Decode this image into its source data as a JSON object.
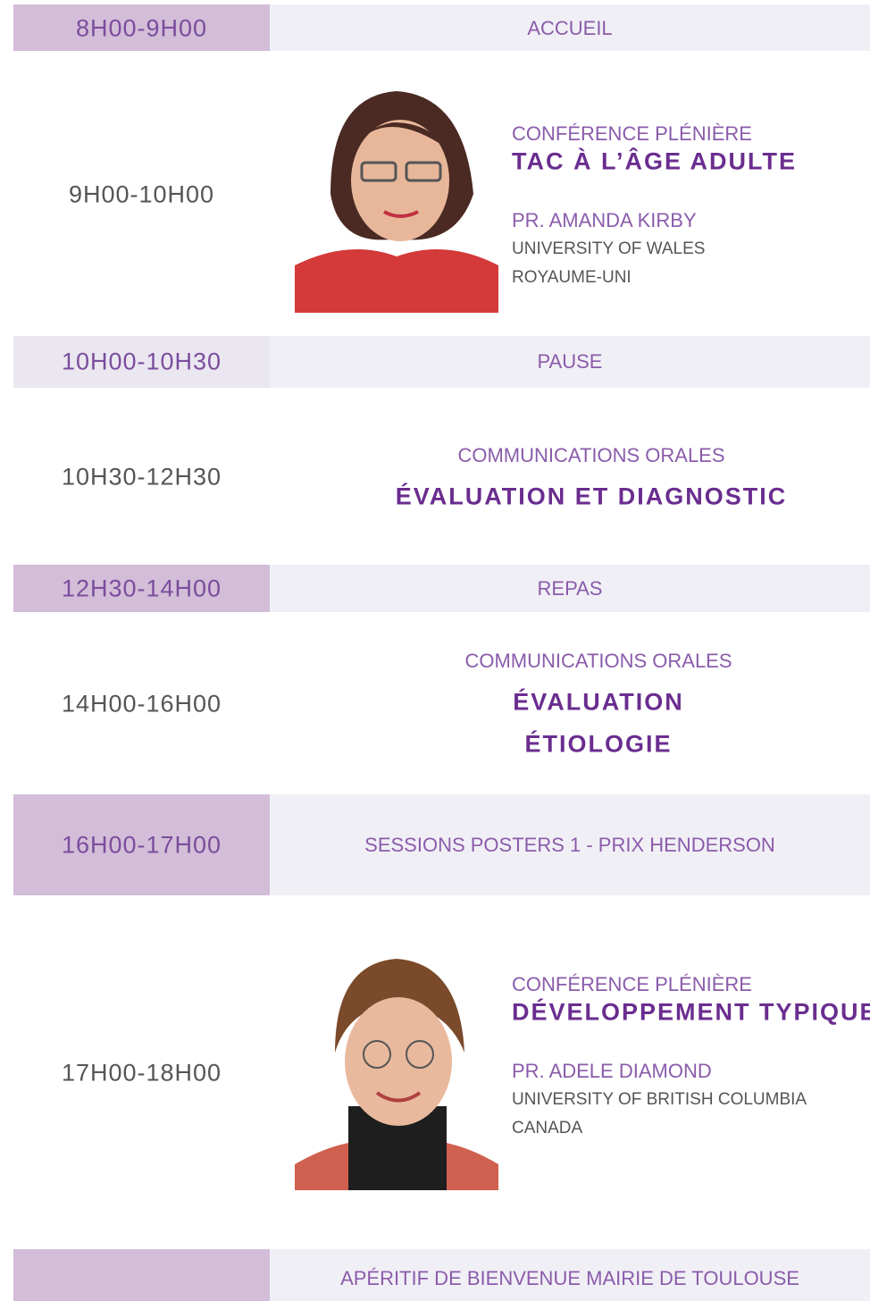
{
  "rows": [
    {
      "time": "8H00-9H00",
      "label": "ACCUEIL"
    },
    {
      "time": "9H00-10H00",
      "kind": "CONFÉRENCE PLÉNIÈRE",
      "title": "TAC À L’ÂGE ADULTE",
      "speaker": "PR. AMANDA KIRBY",
      "affiliation": "UNIVERSITY OF WALES",
      "country": "ROYAUME-UNI"
    },
    {
      "time": "10H00-10H30",
      "label": "PAUSE"
    },
    {
      "time": "10H30-12H30",
      "kind": "COMMUNICATIONS ORALES",
      "titles": [
        "ÉVALUATION ET DIAGNOSTIC"
      ]
    },
    {
      "time": "12H30-14H00",
      "label": "REPAS"
    },
    {
      "time": "14H00-16H00",
      "kind": "COMMUNICATIONS ORALES",
      "titles": [
        "ÉVALUATION",
        "ÉTIOLOGIE"
      ]
    },
    {
      "time": "16H00-17H00",
      "label": "SESSIONS POSTERS 1 - PRIX HENDERSON"
    },
    {
      "time": "17H00-18H00",
      "kind": "CONFÉRENCE PLÉNIÈRE",
      "title": "DÉVELOPPEMENT TYPIQUE",
      "speaker": "PR. ADELE DIAMOND",
      "affiliation": "UNIVERSITY OF BRITISH COLUMBIA",
      "country": "CANADA"
    },
    {
      "label": "APÉRITIF DE BIENVENUE MAIRIE DE TOULOUSE"
    }
  ]
}
